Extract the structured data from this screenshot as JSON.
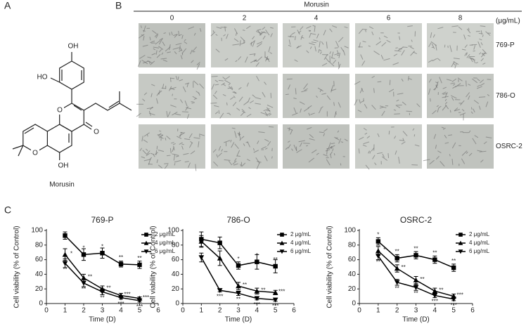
{
  "panel_labels": [
    "A",
    "B",
    "C"
  ],
  "structure": {
    "atoms": [
      "OH",
      "HO",
      "O",
      "O",
      "OH"
    ],
    "caption": "Morusin"
  },
  "microscopy": {
    "title": "Morusin",
    "columns": [
      "0",
      "2",
      "4",
      "6",
      "8"
    ],
    "unit": "(μg/mL)",
    "rows": [
      "769-P",
      "786-O",
      "OSRC-2"
    ]
  },
  "chart_data": [
    {
      "type": "line",
      "title": "769-P",
      "x_label": "Time (D)",
      "y_label": "Cell viability (% of Control)",
      "x": [
        1,
        2,
        3,
        4,
        5
      ],
      "xlim": [
        0,
        6
      ],
      "xticks": [
        0,
        1,
        2,
        3,
        4,
        5,
        6
      ],
      "ylim": [
        0,
        100
      ],
      "yticks": [
        0,
        20,
        40,
        60,
        80,
        100
      ],
      "series": [
        {
          "name": "2 μg/mL",
          "color": "#000000",
          "marker": "square",
          "values": [
            93,
            67,
            69,
            54,
            53
          ],
          "errors": [
            5,
            8,
            7,
            4,
            5
          ],
          "stars": [
            null,
            "*",
            "*",
            "**",
            "**"
          ]
        },
        {
          "name": "4 μg/mL",
          "color": "#000000",
          "marker": "triangle-up",
          "values": [
            67,
            35,
            20,
            11,
            7
          ],
          "errors": [
            8,
            5,
            4,
            3,
            2
          ],
          "stars": [
            "*",
            "**",
            "**",
            "***",
            "***"
          ]
        },
        {
          "name": "6 μg/mL",
          "color": "#000000",
          "marker": "triangle-down",
          "values": [
            55,
            28,
            16,
            8,
            4
          ],
          "errors": [
            6,
            5,
            4,
            2,
            2
          ],
          "stars": [
            "**",
            "**",
            "**",
            "***",
            "***"
          ]
        }
      ]
    },
    {
      "type": "line",
      "title": "786-O",
      "x_label": "Time (D)",
      "y_label": "Cell viability (% of Control)",
      "x": [
        1,
        2,
        3,
        4,
        5
      ],
      "xlim": [
        0,
        6
      ],
      "xticks": [
        0,
        1,
        2,
        3,
        4,
        5,
        6
      ],
      "ylim": [
        0,
        100
      ],
      "yticks": [
        0,
        20,
        40,
        60,
        80,
        100
      ],
      "series": [
        {
          "name": "2 μg/mL",
          "color": "#000000",
          "marker": "square",
          "values": [
            88,
            83,
            52,
            57,
            51
          ],
          "errors": [
            10,
            8,
            5,
            10,
            9
          ],
          "stars": [
            null,
            null,
            "*",
            "*",
            "**"
          ]
        },
        {
          "name": "4 μg/mL",
          "color": "#000000",
          "marker": "triangle-up",
          "values": [
            85,
            62,
            24,
            17,
            15
          ],
          "errors": [
            8,
            10,
            5,
            4,
            3
          ],
          "stars": [
            null,
            null,
            "**",
            "**",
            "***"
          ]
        },
        {
          "name": "6 μg/mL",
          "color": "#000000",
          "marker": "triangle-down",
          "values": [
            63,
            18,
            14,
            7,
            5
          ],
          "errors": [
            6,
            2,
            3,
            2,
            2
          ],
          "stars": [
            null,
            "***",
            "**",
            "***",
            "***"
          ]
        }
      ]
    },
    {
      "type": "line",
      "title": "OSRC-2",
      "x_label": "Time (D)",
      "y_label": "Cell viability (% of Control)",
      "x": [
        1,
        2,
        3,
        4,
        5
      ],
      "xlim": [
        0,
        6
      ],
      "xticks": [
        0,
        1,
        2,
        3,
        4,
        5,
        6
      ],
      "ylim": [
        0,
        100
      ],
      "yticks": [
        0,
        20,
        40,
        60,
        80,
        100
      ],
      "series": [
        {
          "name": "2 μg/mL",
          "color": "#000000",
          "marker": "square",
          "values": [
            85,
            62,
            66,
            60,
            49
          ],
          "errors": [
            5,
            5,
            5,
            5,
            5
          ],
          "stars": [
            "*",
            "**",
            "**",
            "**",
            "**"
          ]
        },
        {
          "name": "4 μg/mL",
          "color": "#000000",
          "marker": "triangle-up",
          "values": [
            72,
            48,
            32,
            17,
            10
          ],
          "errors": [
            6,
            5,
            5,
            4,
            3
          ],
          "stars": [
            "*",
            "**",
            "**",
            "**",
            "***"
          ]
        },
        {
          "name": "6 μg/mL",
          "color": "#000000",
          "marker": "triangle-down",
          "values": [
            65,
            29,
            22,
            11,
            6
          ],
          "errors": [
            5,
            4,
            4,
            3,
            2
          ],
          "stars": [
            "**",
            "**",
            "**",
            "***",
            "***"
          ]
        }
      ]
    }
  ]
}
